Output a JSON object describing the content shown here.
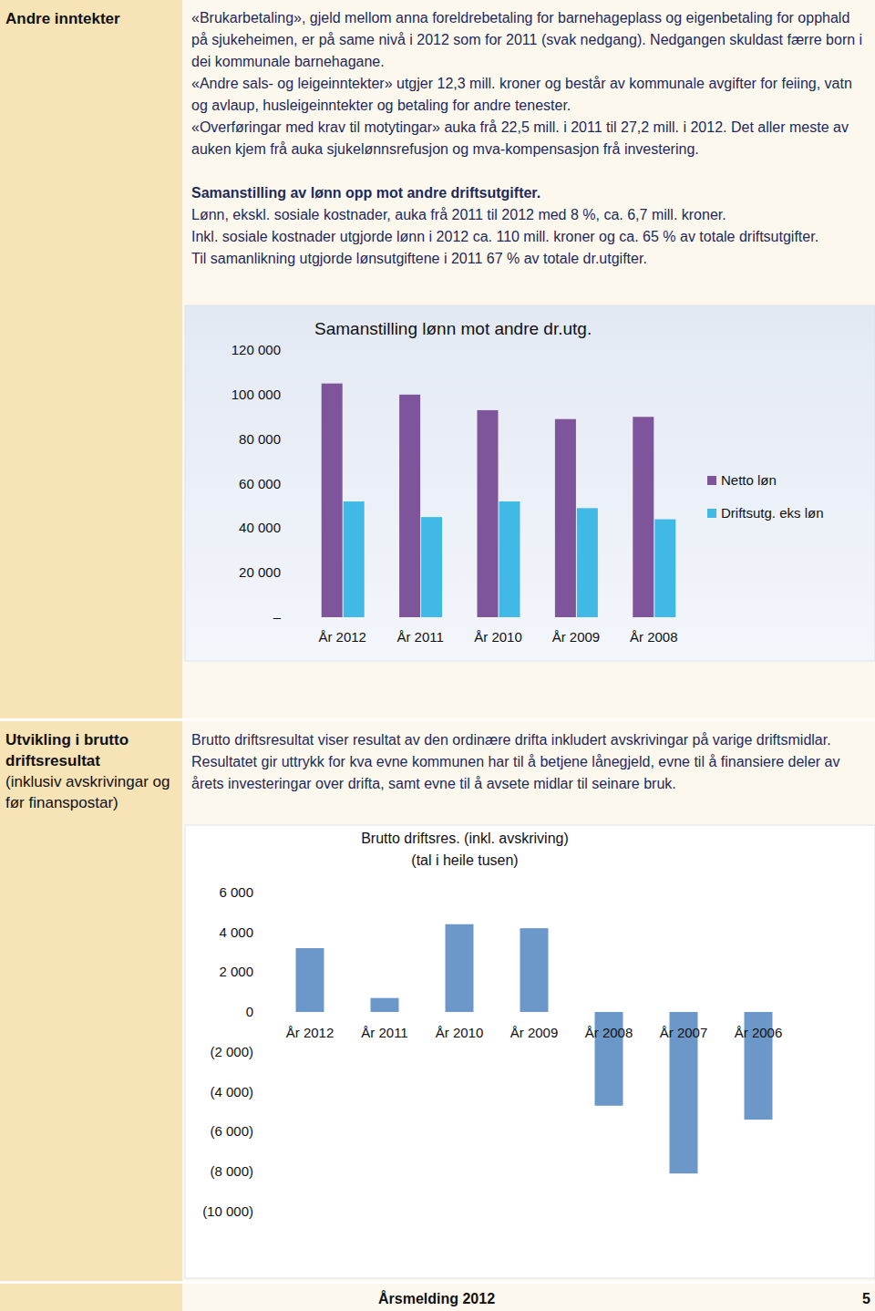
{
  "sections": [
    {
      "label": "Andre inntekter",
      "paragraphs": [
        "«Brukarbetaling», gjeld mellom anna foreldrebetaling for barnehageplass og eigenbetaling for opphald på sjukeheimen, er på same nivå i 2012 som for 2011 (svak nedgang). Nedgangen skuldast færre born i dei kommunale barnehagane.",
        "«Andre sals- og leigeinntekter» utgjer 12,3 mill. kroner og består av kommunale avgifter for feiing, vatn og avlaup, husleigeinntekter og betaling for andre tenester.",
        "«Overføringar med krav til motytingar» auka frå 22,5 mill. i 2011 til 27,2 mill. i 2012. Det aller meste av auken kjem frå auka sjukelønnsrefusjon og mva-kompensasjon frå investering."
      ],
      "heading": "Samanstilling av lønn opp mot andre driftsutgifter.",
      "lines": [
        "Lønn, ekskl. sosiale kostnader, auka frå 2011 til 2012 med 8 %, ca. 6,7 mill. kroner.",
        "Inkl. sosiale kostnader utgjorde lønn i 2012 ca. 110 mill. kroner og ca. 65 % av totale driftsutgifter.",
        "Til samanlikning utgjorde lønsutgiftene i 2011 67 % av totale dr.utgifter."
      ]
    },
    {
      "label": "Utvikling i brutto driftsresultat",
      "sublabel": "(inklusiv avskrivingar og før finanspostar)",
      "paragraphs": [
        "Brutto driftsresultat viser resultat av den ordinære drifta inkludert avskrivingar på varige driftsmidlar. Resultatet gir uttrykk for kva evne kommunen har til å betjene lånegjeld, evne til å finansiere deler av årets investeringar over drifta, samt evne til å avsete midlar til seinare bruk."
      ]
    }
  ],
  "chart_data": [
    {
      "type": "bar",
      "title": "Samanstilling lønn mot andre dr.utg.",
      "categories": [
        "År 2012",
        "År 2011",
        "År 2010",
        "År 2009",
        "År 2008"
      ],
      "series": [
        {
          "name": "Netto løn",
          "color": "#7e549a",
          "values": [
            105000,
            100000,
            93000,
            89000,
            90000
          ]
        },
        {
          "name": "Driftsutg. eks løn",
          "color": "#40b9e6",
          "values": [
            52000,
            45000,
            52000,
            49000,
            44000
          ]
        }
      ],
      "ylim": [
        0,
        120000
      ],
      "yticks": [
        {
          "value": 0,
          "label": "–"
        },
        {
          "value": 20000,
          "label": "20 000"
        },
        {
          "value": 40000,
          "label": "40 000"
        },
        {
          "value": 60000,
          "label": "60 000"
        },
        {
          "value": 80000,
          "label": "80 000"
        },
        {
          "value": 100000,
          "label": "100 000"
        },
        {
          "value": 120000,
          "label": "120 000"
        }
      ],
      "grid": false,
      "legend": "right"
    },
    {
      "type": "bar",
      "title": "Brutto driftsres. (inkl. avskriving)",
      "subtitle": "(tal i heile tusen)",
      "categories": [
        "År 2012",
        "År 2011",
        "År 2010",
        "År 2009",
        "År 2008",
        "År 2007",
        "År 2006"
      ],
      "values": [
        3200,
        700,
        4400,
        4200,
        -4700,
        -8100,
        -5400
      ],
      "color": "#6b97c9",
      "ylim": [
        -10000,
        6000
      ],
      "yticks": [
        {
          "value": -10000,
          "label": "(10 000)"
        },
        {
          "value": -8000,
          "label": "(8 000)"
        },
        {
          "value": -6000,
          "label": "(6 000)"
        },
        {
          "value": -4000,
          "label": "(4 000)"
        },
        {
          "value": -2000,
          "label": "(2 000)"
        },
        0,
        {
          "value": 2000,
          "label": "2 000"
        },
        {
          "value": 4000,
          "label": "4 000"
        },
        {
          "value": 6000,
          "label": "6 000"
        }
      ],
      "grid": false
    }
  ],
  "footer": {
    "title": "Årsmelding 2012",
    "page": "5"
  }
}
